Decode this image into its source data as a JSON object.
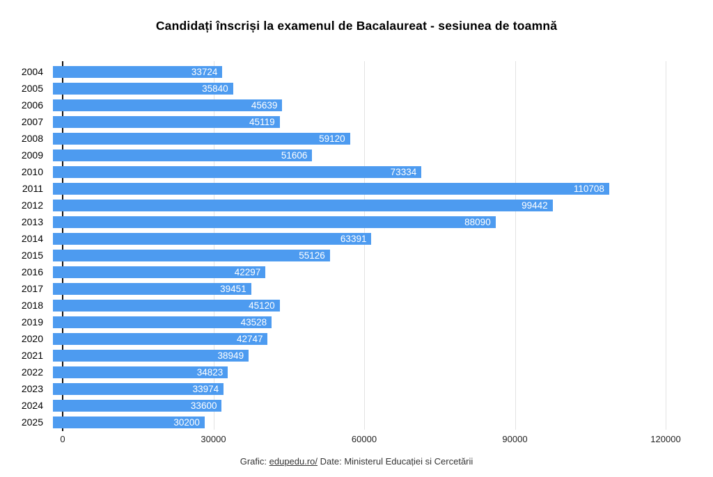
{
  "chart_data": {
    "type": "bar",
    "orientation": "horizontal",
    "title": "Candidați înscriși la examenul de Bacalaureat - sesiunea de toamnă",
    "categories": [
      "2004",
      "2005",
      "2006",
      "2007",
      "2008",
      "2009",
      "2010",
      "2011",
      "2012",
      "2013",
      "2014",
      "2015",
      "2016",
      "2017",
      "2018",
      "2019",
      "2020",
      "2021",
      "2022",
      "2023",
      "2024",
      "2025"
    ],
    "values": [
      33724,
      35840,
      45639,
      45119,
      59120,
      51606,
      73334,
      110708,
      99442,
      88090,
      63391,
      55126,
      42297,
      39451,
      45120,
      43528,
      42747,
      38949,
      34823,
      33974,
      33600,
      30200
    ],
    "xlabel": "",
    "ylabel": "",
    "xlim": [
      0,
      120000
    ],
    "x_ticks": [
      0,
      30000,
      60000,
      90000,
      120000
    ],
    "grid": "vertical-only",
    "legend": "none",
    "bar_color": "#4D9BF0",
    "value_label_color": "#ffffff",
    "gridline_color": "#e2e2e2",
    "axis_line_color": "#111111"
  },
  "footer": {
    "prefix": "Grafic:",
    "link": "edupedu.ro/",
    "suffix": "Date: Ministerul Educației si Cercetării"
  }
}
